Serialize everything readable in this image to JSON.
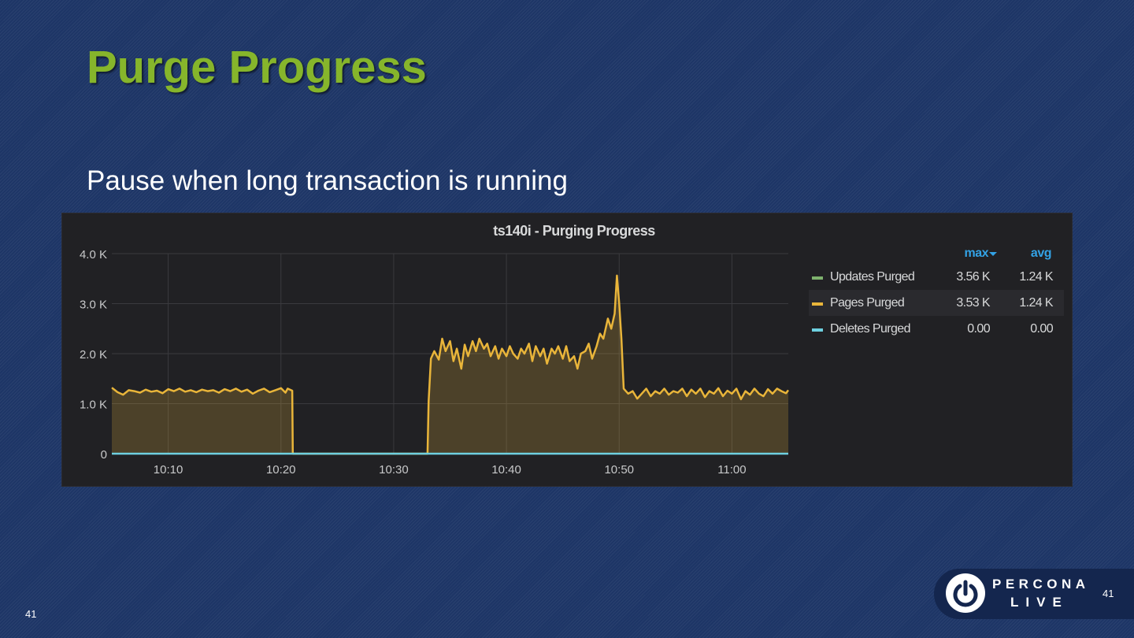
{
  "slide": {
    "title": "Purge Progress",
    "subtitle": "Pause when long transaction is running",
    "footer_page_number": "41",
    "corner_page_number": "41"
  },
  "logo": {
    "line1": "PERCONA",
    "line2": "LIVE",
    "icon": "power-icon"
  },
  "colors": {
    "background": "#1d3566",
    "title": "#86b52b",
    "panel": "#212124",
    "pages_purged": "#e9b53a",
    "updates_purged": "#7eb26d",
    "deletes_purged": "#6ed0e0",
    "legend_header": "#33a2e5"
  },
  "legend": {
    "header_max": "max",
    "header_avg": "avg",
    "items": [
      {
        "name": "Updates Purged",
        "max": "3.56 K",
        "avg": "1.24 K",
        "color": "#7eb26d"
      },
      {
        "name": "Pages Purged",
        "max": "3.53 K",
        "avg": "1.24 K",
        "color": "#e9b53a"
      },
      {
        "name": "Deletes Purged",
        "max": "0.00",
        "avg": "0.00",
        "color": "#6ed0e0"
      }
    ]
  },
  "chart_data": {
    "type": "area",
    "title": "ts140i - Purging Progress",
    "xlabel": "",
    "ylabel": "",
    "x_tick_labels": [
      "10:10",
      "10:20",
      "10:30",
      "10:40",
      "10:50",
      "11:00"
    ],
    "x_ticks_minutes": [
      10,
      20,
      30,
      40,
      50,
      60
    ],
    "xlim_minutes": [
      5,
      65
    ],
    "y_tick_labels": [
      "0",
      "1.0 K",
      "2.0 K",
      "3.0 K",
      "4.0 K"
    ],
    "y_ticks": [
      0,
      1000,
      2000,
      3000,
      4000
    ],
    "ylim": [
      0,
      4000
    ],
    "grid": true,
    "legend_placement": "right",
    "series": [
      {
        "name": "Pages Purged",
        "color": "#e9b53a",
        "fill": true,
        "points": [
          [
            5.0,
            1320
          ],
          [
            5.5,
            1230
          ],
          [
            6.0,
            1180
          ],
          [
            6.5,
            1270
          ],
          [
            7.0,
            1250
          ],
          [
            7.5,
            1220
          ],
          [
            8.0,
            1280
          ],
          [
            8.5,
            1240
          ],
          [
            9.0,
            1260
          ],
          [
            9.5,
            1210
          ],
          [
            10.0,
            1290
          ],
          [
            10.5,
            1250
          ],
          [
            11.0,
            1300
          ],
          [
            11.5,
            1240
          ],
          [
            12.0,
            1270
          ],
          [
            12.5,
            1230
          ],
          [
            13.0,
            1280
          ],
          [
            13.5,
            1250
          ],
          [
            14.0,
            1270
          ],
          [
            14.5,
            1220
          ],
          [
            15.0,
            1290
          ],
          [
            15.5,
            1250
          ],
          [
            16.0,
            1300
          ],
          [
            16.5,
            1240
          ],
          [
            17.0,
            1280
          ],
          [
            17.5,
            1200
          ],
          [
            18.0,
            1260
          ],
          [
            18.5,
            1300
          ],
          [
            19.0,
            1230
          ],
          [
            19.5,
            1270
          ],
          [
            20.0,
            1310
          ],
          [
            20.4,
            1220
          ],
          [
            20.6,
            1300
          ],
          [
            21.0,
            1260
          ],
          [
            21.05,
            0
          ],
          [
            29.2,
            0
          ],
          [
            29.3,
            0
          ],
          [
            33.0,
            0
          ],
          [
            33.1,
            1050
          ],
          [
            33.3,
            1900
          ],
          [
            33.6,
            2050
          ],
          [
            34.0,
            1880
          ],
          [
            34.3,
            2300
          ],
          [
            34.6,
            2050
          ],
          [
            35.0,
            2250
          ],
          [
            35.3,
            1850
          ],
          [
            35.6,
            2100
          ],
          [
            36.0,
            1700
          ],
          [
            36.3,
            2180
          ],
          [
            36.6,
            1950
          ],
          [
            37.0,
            2250
          ],
          [
            37.3,
            2050
          ],
          [
            37.6,
            2300
          ],
          [
            38.0,
            2100
          ],
          [
            38.3,
            2200
          ],
          [
            38.6,
            1950
          ],
          [
            39.0,
            2150
          ],
          [
            39.3,
            1900
          ],
          [
            39.6,
            2100
          ],
          [
            40.0,
            1950
          ],
          [
            40.3,
            2150
          ],
          [
            40.6,
            2000
          ],
          [
            41.0,
            1900
          ],
          [
            41.3,
            2100
          ],
          [
            41.6,
            2000
          ],
          [
            42.0,
            2200
          ],
          [
            42.3,
            1850
          ],
          [
            42.6,
            2150
          ],
          [
            43.0,
            1950
          ],
          [
            43.3,
            2100
          ],
          [
            43.6,
            1800
          ],
          [
            44.0,
            2100
          ],
          [
            44.3,
            2000
          ],
          [
            44.6,
            2150
          ],
          [
            45.0,
            1900
          ],
          [
            45.3,
            2150
          ],
          [
            45.6,
            1850
          ],
          [
            46.0,
            1950
          ],
          [
            46.3,
            1700
          ],
          [
            46.6,
            2000
          ],
          [
            47.0,
            2050
          ],
          [
            47.3,
            2200
          ],
          [
            47.6,
            1900
          ],
          [
            48.0,
            2150
          ],
          [
            48.3,
            2400
          ],
          [
            48.6,
            2300
          ],
          [
            49.0,
            2700
          ],
          [
            49.3,
            2500
          ],
          [
            49.6,
            2800
          ],
          [
            49.8,
            3560
          ],
          [
            50.0,
            3000
          ],
          [
            50.2,
            2300
          ],
          [
            50.4,
            1300
          ],
          [
            50.8,
            1200
          ],
          [
            51.2,
            1250
          ],
          [
            51.6,
            1100
          ],
          [
            52.0,
            1200
          ],
          [
            52.4,
            1300
          ],
          [
            52.8,
            1150
          ],
          [
            53.2,
            1250
          ],
          [
            53.6,
            1200
          ],
          [
            54.0,
            1300
          ],
          [
            54.4,
            1180
          ],
          [
            54.8,
            1250
          ],
          [
            55.2,
            1220
          ],
          [
            55.6,
            1300
          ],
          [
            56.0,
            1150
          ],
          [
            56.4,
            1280
          ],
          [
            56.8,
            1200
          ],
          [
            57.2,
            1300
          ],
          [
            57.6,
            1130
          ],
          [
            58.0,
            1250
          ],
          [
            58.4,
            1200
          ],
          [
            58.8,
            1310
          ],
          [
            59.2,
            1150
          ],
          [
            59.6,
            1260
          ],
          [
            60.0,
            1200
          ],
          [
            60.4,
            1300
          ],
          [
            60.8,
            1090
          ],
          [
            61.2,
            1250
          ],
          [
            61.6,
            1180
          ],
          [
            62.0,
            1300
          ],
          [
            62.4,
            1200
          ],
          [
            62.8,
            1150
          ],
          [
            63.2,
            1290
          ],
          [
            63.6,
            1200
          ],
          [
            64.0,
            1300
          ],
          [
            64.4,
            1250
          ],
          [
            64.8,
            1210
          ],
          [
            65.0,
            1270
          ]
        ]
      },
      {
        "name": "Deletes Purged",
        "color": "#6ed0e0",
        "fill": false,
        "points": [
          [
            5.0,
            0
          ],
          [
            65.0,
            0
          ]
        ]
      }
    ]
  }
}
